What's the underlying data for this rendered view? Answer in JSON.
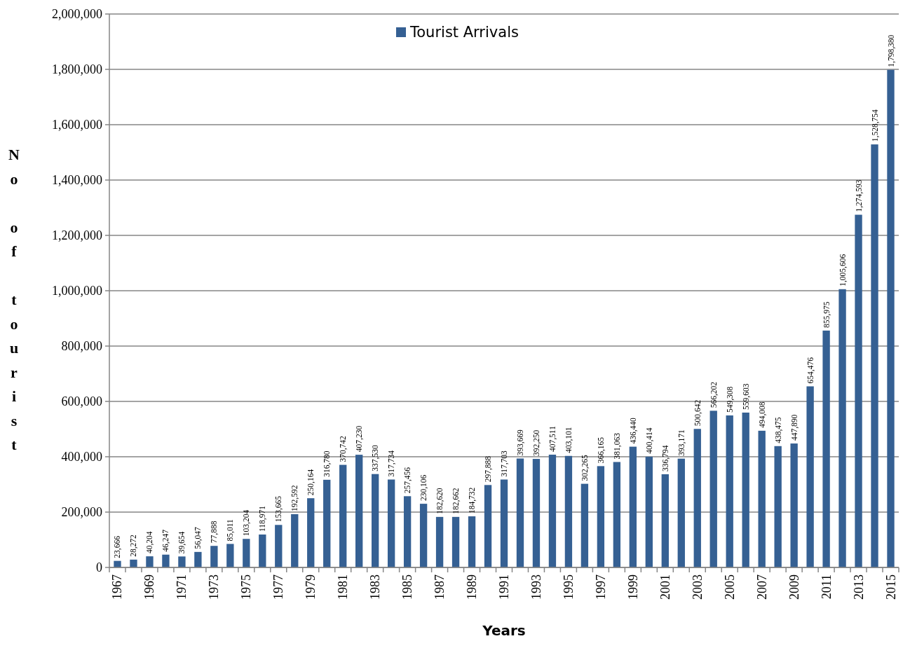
{
  "chart_data": {
    "type": "bar",
    "xlabel": "Years",
    "ylabel": "No of tourist",
    "categories": [
      "1967",
      null,
      "1969",
      null,
      "1971",
      null,
      "1973",
      null,
      "1975",
      null,
      "1977",
      null,
      "1979",
      null,
      "1981",
      null,
      "1983",
      null,
      "1985",
      null,
      "1987",
      null,
      "1989",
      null,
      "1991",
      null,
      "1993",
      null,
      "1995",
      null,
      "1997",
      null,
      "1999",
      null,
      "2001",
      null,
      "2003",
      null,
      "2005",
      null,
      "2007",
      null,
      "2009",
      null,
      "2011",
      null,
      "2013",
      null,
      "2015"
    ],
    "series": [
      {
        "name": "Tourist Arrivals",
        "color": "#356093",
        "values": [
          23666,
          28272,
          40204,
          46247,
          39654,
          56047,
          77888,
          85011,
          103204,
          118971,
          153665,
          192592,
          250164,
          316780,
          370742,
          407230,
          337530,
          317734,
          257456,
          230106,
          182620,
          182662,
          184732,
          297888,
          317703,
          393669,
          392250,
          407511,
          403101,
          302265,
          366165,
          381063,
          436440,
          400414,
          336794,
          393171,
          500642,
          566202,
          549308,
          559603,
          494008,
          438475,
          447890,
          654476,
          855975,
          1005606,
          1274593,
          1528754,
          1798380
        ],
        "value_labels": [
          "23,666",
          "28,272",
          "40,204",
          "46,247",
          "39,654",
          "56,047",
          "77,888",
          "85,011",
          "103,204",
          "118,971",
          "153,665",
          "192,592",
          "250,164",
          "316,780",
          "370,742",
          "407,230",
          "337,530",
          "317,734",
          "257,456",
          "230,106",
          "182,620",
          "182,662",
          "184,732",
          "297,888",
          "317,703",
          "393,669",
          "392,250",
          "407,511",
          "403,101",
          "302,265",
          "366,165",
          "381,063",
          "436,440",
          "400,414",
          "336,794",
          "393,171",
          "500,642",
          "566,202",
          "549,308",
          "559,603",
          "494,008",
          "438,475",
          "447,890",
          "654,476",
          "855,975",
          "1,005,606",
          "1,274,593",
          "1,528,754",
          "1,798,380"
        ]
      }
    ],
    "ylim": [
      0,
      2000000
    ],
    "yticks": [
      0,
      {
        "value": 200000,
        "label": "200,000"
      },
      {
        "value": 400000,
        "label": "400,000"
      },
      {
        "value": 600000,
        "label": "600,000"
      },
      {
        "value": 800000,
        "label": "800,000"
      },
      {
        "value": 1000000,
        "label": "1,000,000"
      },
      {
        "value": 1200000,
        "label": "1,200,000"
      },
      {
        "value": 1400000,
        "label": "1,400,000"
      },
      {
        "value": 1600000,
        "label": "1,600,000"
      },
      {
        "value": 1800000,
        "label": "1,800,000"
      },
      {
        "value": 2000000,
        "label": "2,000,000"
      }
    ],
    "grid": "y",
    "legend": "top"
  }
}
